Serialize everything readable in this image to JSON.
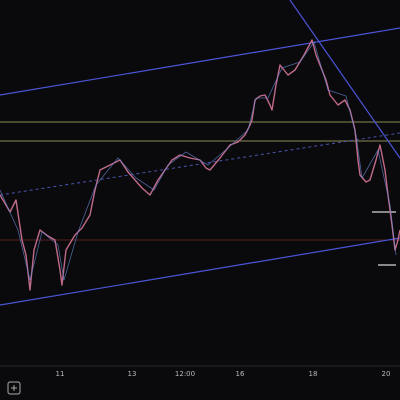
{
  "x_axis": {
    "labels": [
      "11",
      "13",
      "12:00",
      "16",
      "18",
      "20"
    ]
  }
}
